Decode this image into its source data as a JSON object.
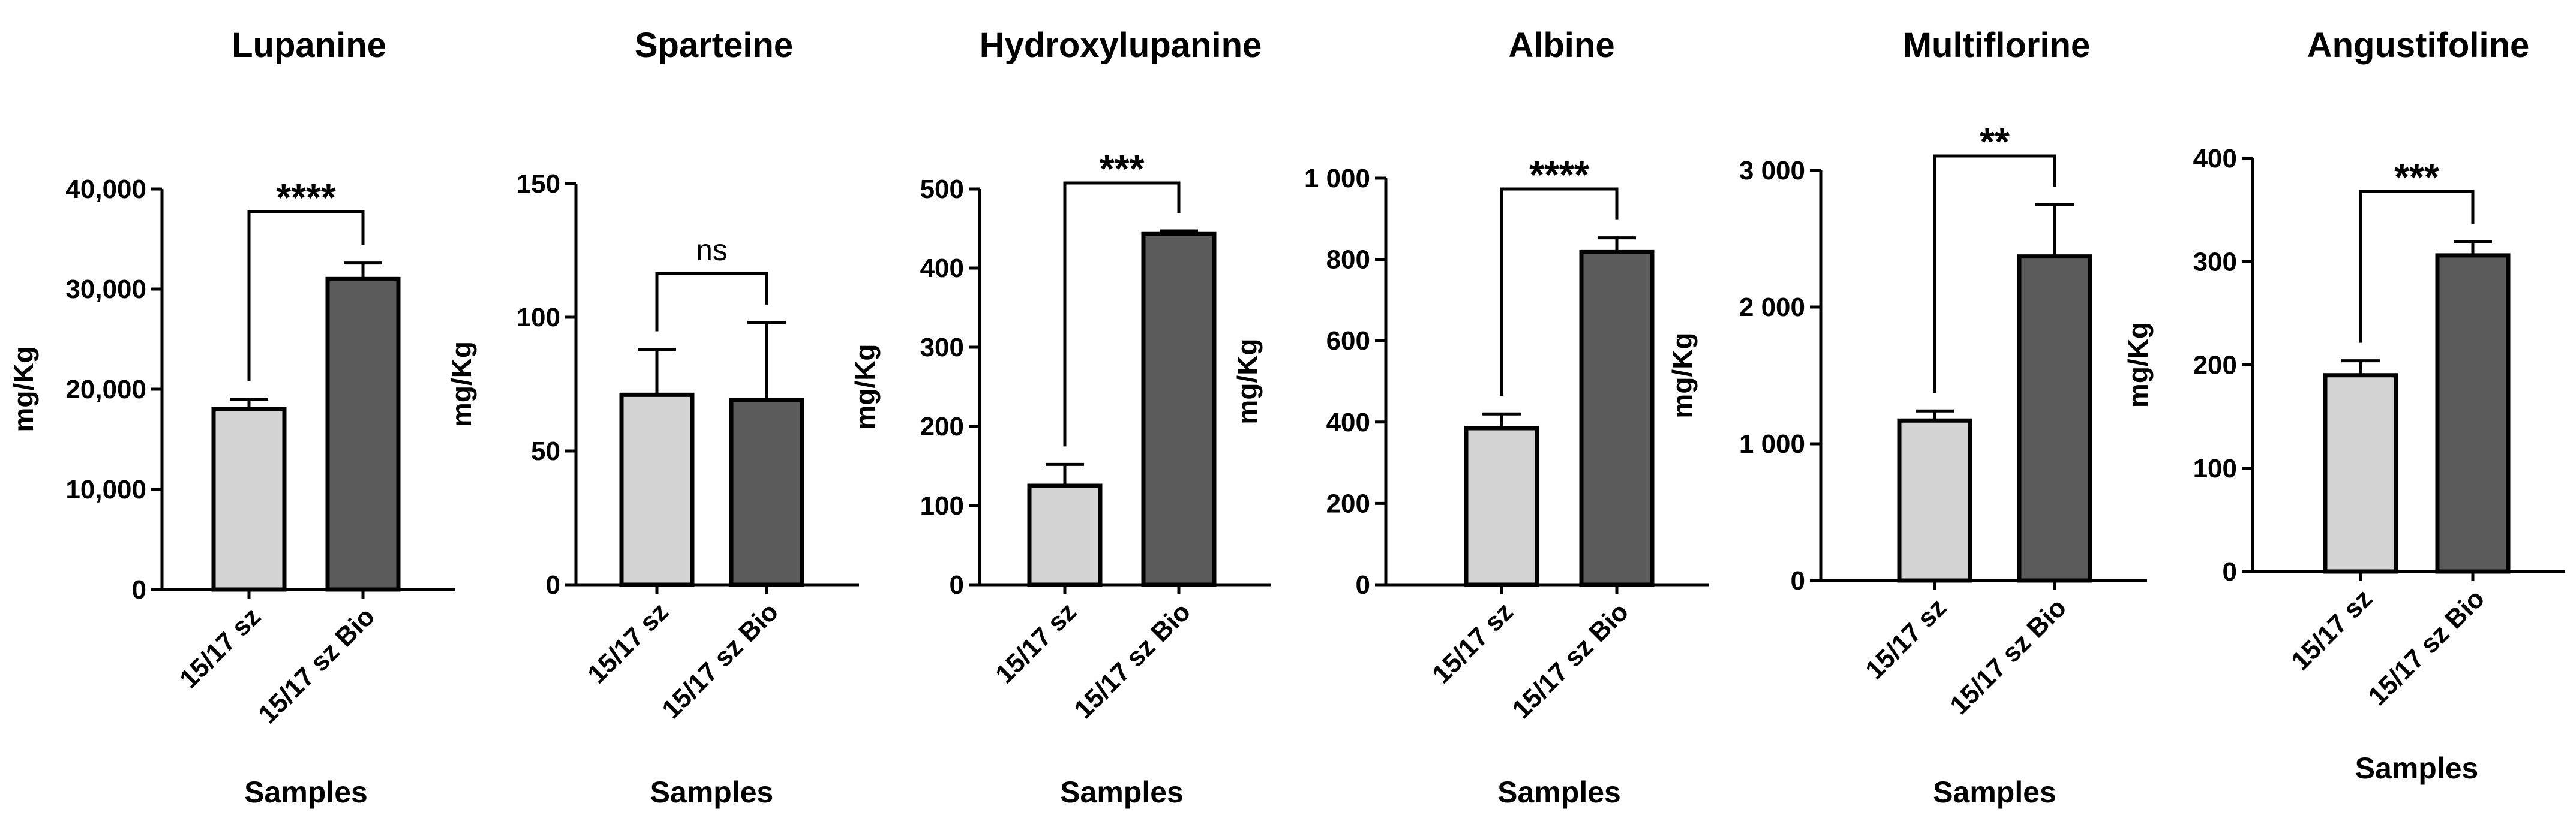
{
  "chart_data": [
    {
      "type": "bar",
      "title": "Lupanine",
      "xlabel": "Samples",
      "ylabel": "mg/Kg",
      "categories": [
        "15/17 sz",
        "15/17 sz Bio"
      ],
      "values": [
        18000,
        31000
      ],
      "errors": [
        1000,
        1600
      ],
      "ylim": [
        0,
        40000
      ],
      "yticks": [
        0,
        10000,
        20000,
        30000,
        40000
      ],
      "ytick_labels": [
        "0",
        "10,000",
        "20,000",
        "30,000",
        "40,000"
      ],
      "significance": "****",
      "colors": [
        "#d3d3d3",
        "#5b5b5b"
      ]
    },
    {
      "type": "bar",
      "title": "Sparteine",
      "xlabel": "Samples",
      "ylabel": "mg/Kg",
      "categories": [
        "15/17 sz",
        "15/17 sz Bio"
      ],
      "values": [
        71,
        69
      ],
      "errors": [
        17,
        29
      ],
      "ylim": [
        0,
        150
      ],
      "yticks": [
        0,
        50,
        100,
        150
      ],
      "ytick_labels": [
        "0",
        "50",
        "100",
        "150"
      ],
      "significance": "ns",
      "colors": [
        "#d3d3d3",
        "#5b5b5b"
      ]
    },
    {
      "type": "bar",
      "title": "Hydroxylupanine",
      "xlabel": "Samples",
      "ylabel": "mg/Kg",
      "categories": [
        "15/17 sz",
        "15/17 sz Bio"
      ],
      "values": [
        125,
        443
      ],
      "errors": [
        27,
        4
      ],
      "ylim": [
        0,
        500
      ],
      "yticks": [
        0,
        100,
        200,
        300,
        400,
        500
      ],
      "ytick_labels": [
        "0",
        "100",
        "200",
        "300",
        "400",
        "500"
      ],
      "significance": "***",
      "colors": [
        "#d3d3d3",
        "#5b5b5b"
      ]
    },
    {
      "type": "bar",
      "title": "Albine",
      "xlabel": "Samples",
      "ylabel": "mg/Kg",
      "categories": [
        "15/17 sz",
        "15/17 sz Bio"
      ],
      "values": [
        385,
        818
      ],
      "errors": [
        35,
        35
      ],
      "ylim": [
        0,
        1000
      ],
      "yticks": [
        0,
        200,
        400,
        600,
        800,
        1000
      ],
      "ytick_labels": [
        "0",
        "200",
        "400",
        "600",
        "800",
        "1 000"
      ],
      "significance": "****",
      "colors": [
        "#d3d3d3",
        "#5b5b5b"
      ]
    },
    {
      "type": "bar",
      "title": "Multiflorine",
      "xlabel": "Samples",
      "ylabel": "mg/Kg",
      "categories": [
        "15/17 sz",
        "15/17 sz Bio"
      ],
      "values": [
        1170,
        2370
      ],
      "errors": [
        70,
        380
      ],
      "ylim": [
        0,
        3000
      ],
      "yticks": [
        0,
        1000,
        2000,
        3000
      ],
      "ytick_labels": [
        "0",
        "1 000",
        "2 000",
        "3 000"
      ],
      "significance": "**",
      "colors": [
        "#d3d3d3",
        "#5b5b5b"
      ]
    },
    {
      "type": "bar",
      "title": "Angustifoline",
      "xlabel": "Samples",
      "ylabel": "mg/Kg",
      "categories": [
        "15/17 sz",
        "15/17 sz Bio"
      ],
      "values": [
        190,
        306
      ],
      "errors": [
        14,
        13
      ],
      "ylim": [
        0,
        400
      ],
      "yticks": [
        0,
        100,
        200,
        300,
        400
      ],
      "ytick_labels": [
        "0",
        "100",
        "200",
        "300",
        "400"
      ],
      "significance": "***",
      "colors": [
        "#d3d3d3",
        "#5b5b5b"
      ]
    }
  ]
}
